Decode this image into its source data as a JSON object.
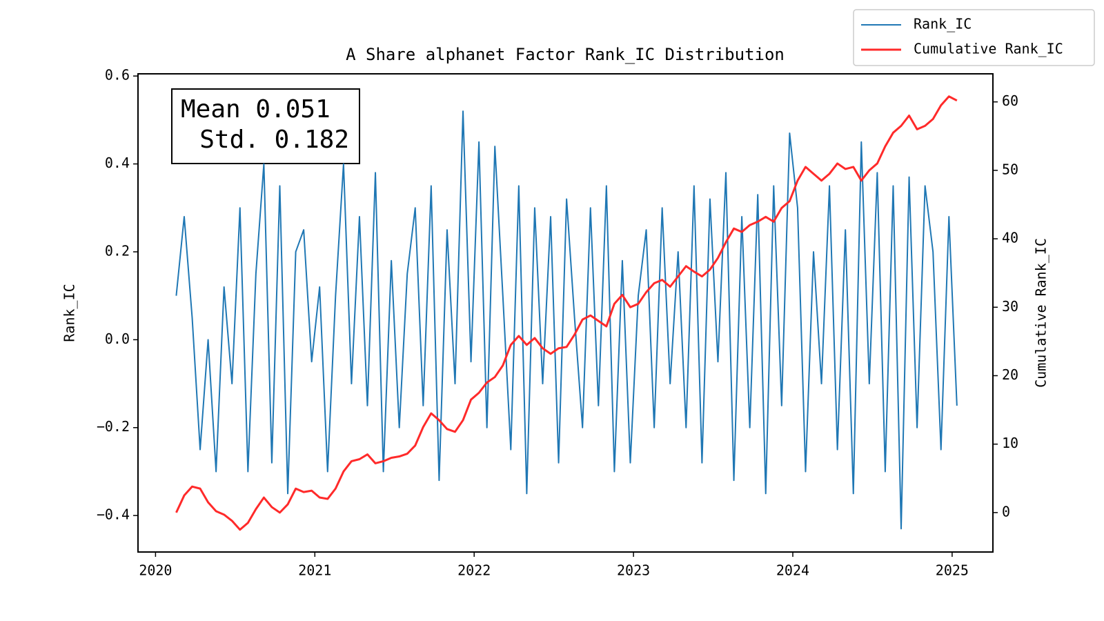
{
  "chart_data": {
    "type": "line",
    "title": "A Share alphanet Factor Rank_IC Distribution",
    "ylabel": "Rank_IC",
    "y2label": "Cumulative Rank_IC",
    "annotations": [
      "Mean 0.051",
      "Std. 0.182"
    ],
    "legend": "upper right",
    "ycolor": "blue",
    "y2color": "red",
    "x": [
      2020.13,
      2020.18,
      2020.23,
      2020.28,
      2020.33,
      2020.38,
      2020.43,
      2020.48,
      2020.53,
      2020.58,
      2020.63,
      2020.68,
      2020.73,
      2020.78,
      2020.83,
      2020.88,
      2020.93,
      2020.98,
      2021.03,
      2021.08,
      2021.13,
      2021.18,
      2021.23,
      2021.28,
      2021.33,
      2021.38,
      2021.43,
      2021.48,
      2021.53,
      2021.58,
      2021.63,
      2021.68,
      2021.73,
      2021.78,
      2021.83,
      2021.88,
      2021.93,
      2021.98,
      2022.03,
      2022.08,
      2022.13,
      2022.18,
      2022.23,
      2022.28,
      2022.33,
      2022.38,
      2022.43,
      2022.48,
      2022.53,
      2022.58,
      2022.63,
      2022.68,
      2022.73,
      2022.78,
      2022.83,
      2022.88,
      2022.93,
      2022.98,
      2023.03,
      2023.08,
      2023.13,
      2023.18,
      2023.23,
      2023.28,
      2023.33,
      2023.38,
      2023.43,
      2023.48,
      2023.53,
      2023.58,
      2023.63,
      2023.68,
      2023.73,
      2023.78,
      2023.83,
      2023.88,
      2023.93,
      2023.98,
      2024.03,
      2024.08,
      2024.13,
      2024.18,
      2024.23,
      2024.28,
      2024.33,
      2024.38,
      2024.43,
      2024.48,
      2024.53,
      2024.58,
      2024.63,
      2024.68,
      2024.73,
      2024.78,
      2024.83,
      2024.88,
      2024.93,
      2024.98,
      2025.03
    ],
    "series": [
      {
        "name": "Rank_IC",
        "color": "#1f77b4",
        "axis": "y",
        "values": [
          0.1,
          0.28,
          0.05,
          -0.25,
          0.0,
          -0.3,
          0.12,
          -0.1,
          0.3,
          -0.3,
          0.15,
          0.4,
          -0.28,
          0.35,
          -0.35,
          0.2,
          0.25,
          -0.05,
          0.12,
          -0.3,
          0.1,
          0.4,
          -0.1,
          0.28,
          -0.15,
          0.38,
          -0.3,
          0.18,
          -0.2,
          0.15,
          0.3,
          -0.15,
          0.35,
          -0.32,
          0.25,
          -0.1,
          0.52,
          -0.05,
          0.45,
          -0.2,
          0.44,
          0.1,
          -0.25,
          0.35,
          -0.35,
          0.3,
          -0.1,
          0.28,
          -0.28,
          0.32,
          0.05,
          -0.2,
          0.3,
          -0.15,
          0.35,
          -0.3,
          0.18,
          -0.28,
          0.1,
          0.25,
          -0.2,
          0.3,
          -0.1,
          0.2,
          -0.2,
          0.35,
          -0.28,
          0.32,
          -0.05,
          0.38,
          -0.32,
          0.28,
          -0.2,
          0.33,
          -0.35,
          0.35,
          -0.15,
          0.47,
          0.3,
          -0.3,
          0.2,
          -0.1,
          0.35,
          -0.25,
          0.25,
          -0.35,
          0.45,
          -0.1,
          0.38,
          -0.3,
          0.35,
          -0.43,
          0.37,
          -0.2,
          0.35,
          0.2,
          -0.25,
          0.28,
          -0.15
        ]
      },
      {
        "name": "Cumulative Rank_IC",
        "color": "#ff2a2a",
        "axis": "y2",
        "values": [
          0,
          2.5,
          3.8,
          3.5,
          1.5,
          0.2,
          -0.3,
          -1.2,
          -2.5,
          -1.5,
          0.5,
          2.2,
          0.8,
          0,
          1.2,
          3.5,
          3,
          3.2,
          2.2,
          2,
          3.5,
          6,
          7.5,
          7.8,
          8.5,
          7.2,
          7.5,
          8,
          8.2,
          8.6,
          9.8,
          12.5,
          14.5,
          13.5,
          12.2,
          11.8,
          13.5,
          16.5,
          17.5,
          19,
          19.8,
          21.5,
          24.5,
          25.8,
          24.5,
          25.5,
          24,
          23.2,
          24,
          24.2,
          26,
          28.2,
          28.8,
          28,
          27.2,
          30.5,
          31.8,
          30,
          30.5,
          32.2,
          33.5,
          34,
          33,
          34.5,
          36,
          35.2,
          34.5,
          35.5,
          37.2,
          39.5,
          41.5,
          41,
          42,
          42.5,
          43.2,
          42.5,
          44.5,
          45.5,
          48.5,
          50.5,
          49.5,
          48.5,
          49.5,
          51,
          50.2,
          50.5,
          48.5,
          50,
          51,
          53.5,
          55.5,
          56.5,
          58,
          56,
          56.5,
          57.5,
          59.5,
          60.8,
          60.2
        ]
      }
    ],
    "xlim": [
      2019.89,
      2025.256
    ],
    "xticks": [
      2020,
      2021,
      2022,
      2023,
      2024,
      2025
    ],
    "ylim": [
      -0.483,
      0.605
    ],
    "yticks": [
      {
        "value": -0.4,
        "label": "−0.4"
      },
      {
        "value": -0.2,
        "label": "−0.2"
      },
      {
        "value": 0,
        "label": "0.0"
      },
      0.2,
      0.4,
      0.6
    ],
    "y2lim": [
      -5.76,
      64.1
    ],
    "y2ticks": [
      0,
      10,
      20,
      30,
      40,
      50,
      60
    ]
  }
}
